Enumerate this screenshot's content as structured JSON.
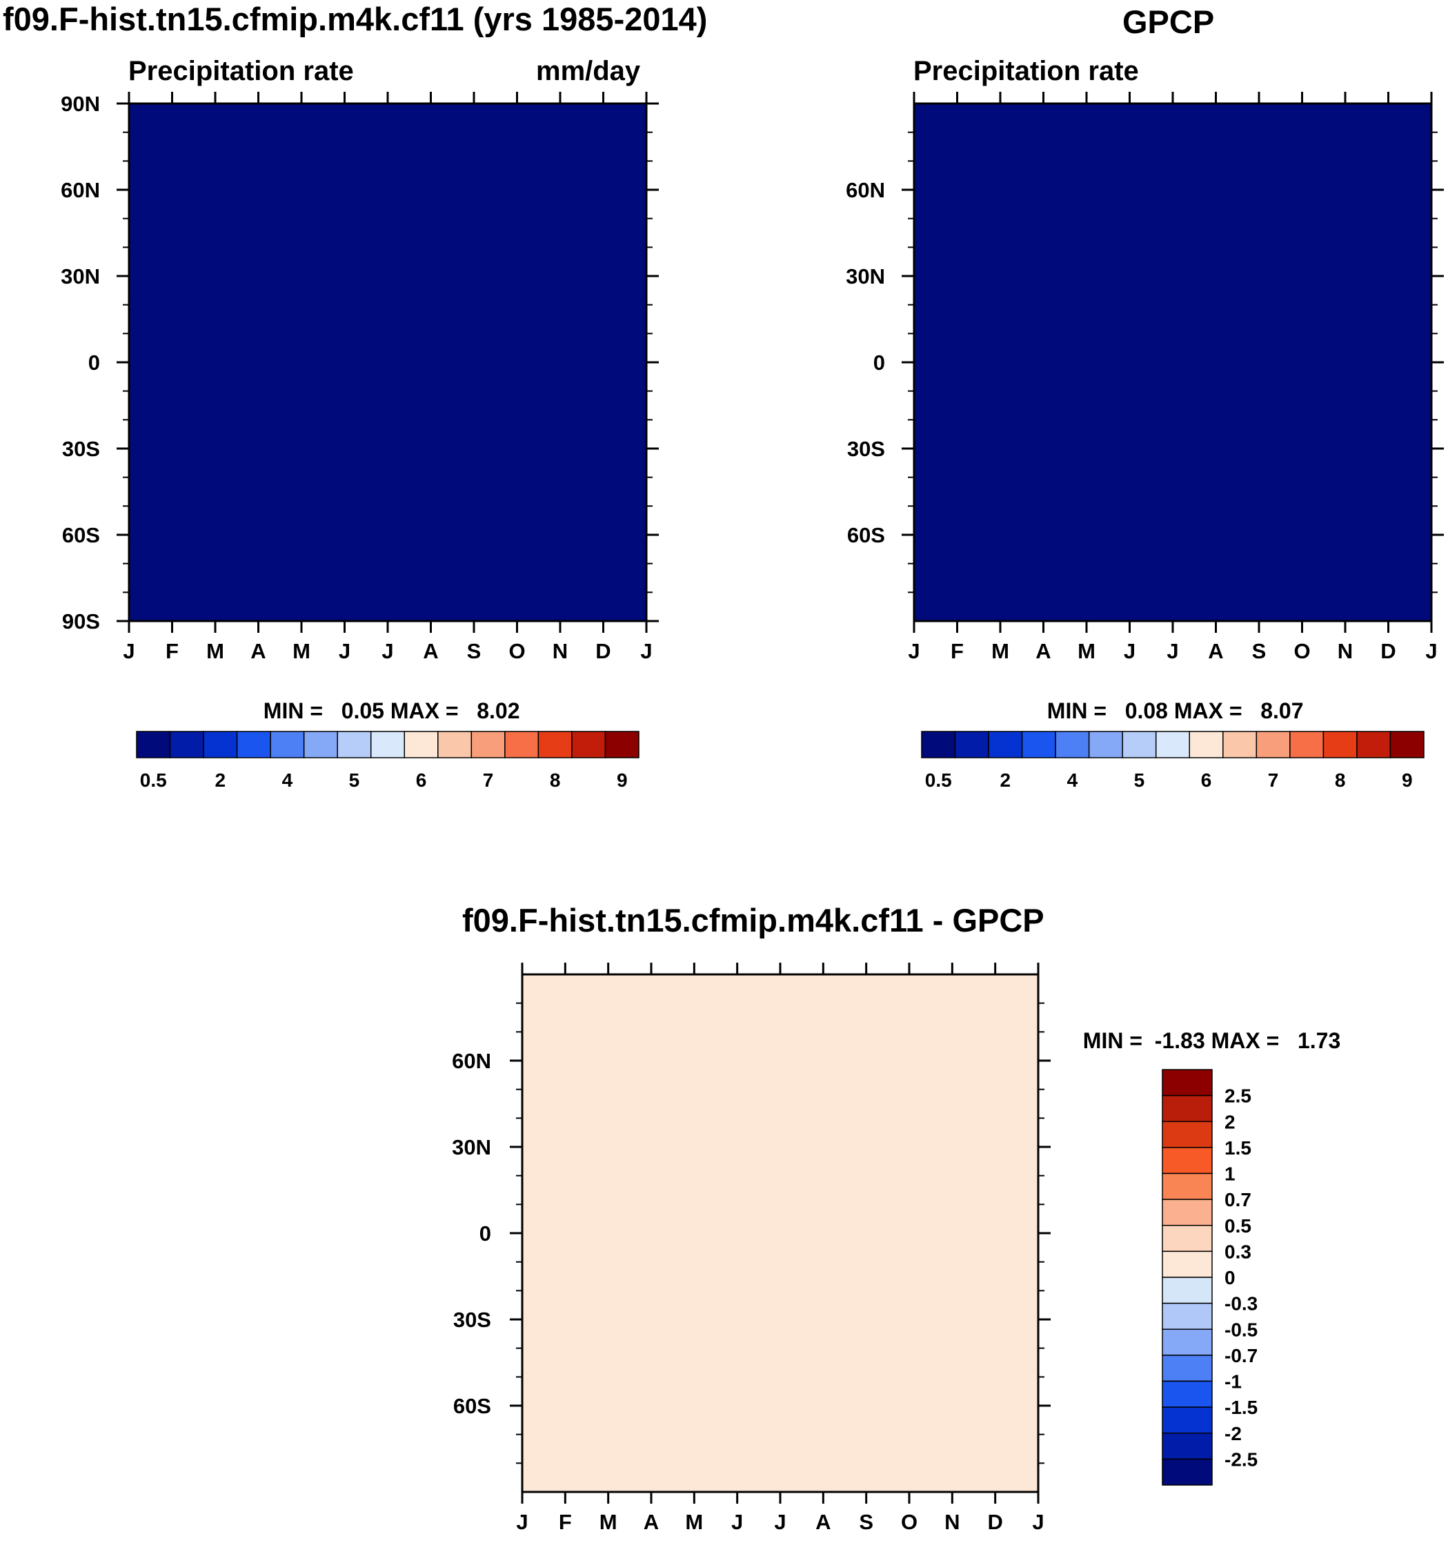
{
  "chart_data": [
    {
      "type": "heatmap",
      "id": "model",
      "title": "f09.F-hist.tn15.cfmip.m4k.cf11 (yrs 1985-2014)",
      "left_label": "Precipitation rate",
      "right_label": "mm/day",
      "x_ticks": [
        "J",
        "F",
        "M",
        "A",
        "M",
        "J",
        "J",
        "A",
        "S",
        "O",
        "N",
        "D",
        "J"
      ],
      "y_ticks": [
        "90N",
        "60N",
        "30N",
        "0",
        "30S",
        "60S",
        "90S"
      ],
      "y_tick_values": [
        90,
        60,
        30,
        0,
        -30,
        -60,
        -90
      ],
      "ylim": [
        -90,
        90
      ],
      "stats": {
        "min_label": "MIN =",
        "min": "0.05",
        "max_label": "MAX =",
        "max": "8.02"
      },
      "colorbar": {
        "orientation": "horizontal",
        "colors": [
          "#000a7a",
          "#001ca8",
          "#0533d1",
          "#1a55f0",
          "#4d7ff5",
          "#85a8f7",
          "#b5cdf8",
          "#d9e8fb",
          "#fde8d7",
          "#fbc7aa",
          "#f99e7a",
          "#f76f46",
          "#e63d16",
          "#c21d0a",
          "#8c0000"
        ],
        "labels": [
          "0.5",
          "2",
          "4",
          "5",
          "6",
          "7",
          "8",
          "9"
        ]
      }
    },
    {
      "type": "heatmap",
      "id": "obs",
      "title": "GPCP",
      "left_label": "Precipitation rate",
      "x_ticks": [
        "J",
        "F",
        "M",
        "A",
        "M",
        "J",
        "J",
        "A",
        "S",
        "O",
        "N",
        "D",
        "J"
      ],
      "y_ticks": [
        "60N",
        "30N",
        "0",
        "30S",
        "60S"
      ],
      "y_tick_values": [
        60,
        30,
        0,
        -30,
        -60
      ],
      "ylim": [
        -90,
        90
      ],
      "stats": {
        "min_label": "MIN =",
        "min": "0.08",
        "max_label": "MAX =",
        "max": "8.07"
      },
      "colorbar": {
        "orientation": "horizontal",
        "colors": [
          "#000a7a",
          "#001ca8",
          "#0533d1",
          "#1a55f0",
          "#4d7ff5",
          "#85a8f7",
          "#b5cdf8",
          "#d9e8fb",
          "#fde8d7",
          "#fbc7aa",
          "#f99e7a",
          "#f76f46",
          "#e63d16",
          "#c21d0a",
          "#8c0000"
        ],
        "labels": [
          "0.5",
          "2",
          "4",
          "5",
          "6",
          "7",
          "8",
          "9"
        ]
      }
    },
    {
      "type": "heatmap",
      "id": "diff",
      "title": "f09.F-hist.tn15.cfmip.m4k.cf11 - GPCP",
      "x_ticks": [
        "J",
        "F",
        "M",
        "A",
        "M",
        "J",
        "J",
        "A",
        "S",
        "O",
        "N",
        "D",
        "J"
      ],
      "y_ticks": [
        "60N",
        "30N",
        "0",
        "30S",
        "60S"
      ],
      "y_tick_values": [
        60,
        30,
        0,
        -30,
        -60
      ],
      "ylim": [
        -90,
        90
      ],
      "stats": {
        "min_label": "MIN =",
        "min": "-1.83",
        "max_label": "MAX =",
        "max": "1.73"
      },
      "colorbar": {
        "orientation": "vertical",
        "colors": [
          "#8c0000",
          "#b81e0a",
          "#dc3a12",
          "#f75a26",
          "#f98555",
          "#fbb08f",
          "#fdd6bf",
          "#fde8d7",
          "#d6e6f9",
          "#b0c8f7",
          "#85a8f7",
          "#4d7ff5",
          "#1a55f0",
          "#0533d1",
          "#001ca8",
          "#000a7a"
        ],
        "labels": [
          "2.5",
          "2",
          "1.5",
          "1",
          "0.7",
          "0.5",
          "0.3",
          "0",
          "-0.3",
          "-0.5",
          "-0.7",
          "-1",
          "-1.5",
          "-2",
          "-2.5"
        ]
      }
    }
  ]
}
